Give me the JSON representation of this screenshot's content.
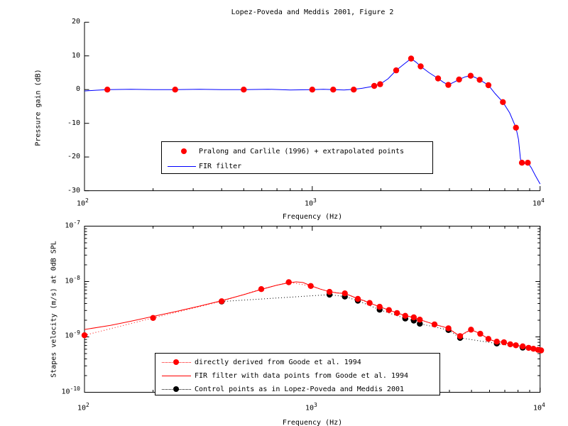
{
  "figure": {
    "background": "#ffffff",
    "axis_color": "#000000",
    "red": "#ff0000",
    "blue": "#0000ff",
    "black": "#000000"
  },
  "chart_data": [
    {
      "type": "line",
      "title": "Lopez-Poveda and Meddis 2001, Figure 2",
      "xlabel": "Frequency (Hz)",
      "ylabel": "Pressure gain (dB)",
      "xscale": "log",
      "yscale": "linear",
      "xlim": [
        100,
        10000
      ],
      "ylim": [
        -30,
        20
      ],
      "grid": false,
      "legend_position": "inside-lower-center",
      "xticks": [
        {
          "v": 100,
          "base": "10",
          "exp": "2"
        },
        {
          "v": 1000,
          "base": "10",
          "exp": "3"
        },
        {
          "v": 10000,
          "base": "10",
          "exp": "4"
        }
      ],
      "xminor": [
        200,
        300,
        400,
        500,
        600,
        700,
        800,
        900,
        2000,
        3000,
        4000,
        5000,
        6000,
        7000,
        8000,
        9000
      ],
      "yticks": [
        {
          "v": 20,
          "label": "20"
        },
        {
          "v": 10,
          "label": "10"
        },
        {
          "v": 0,
          "label": "0"
        },
        {
          "v": -10,
          "label": "-10"
        },
        {
          "v": -20,
          "label": "-20"
        },
        {
          "v": -30,
          "label": "-30"
        }
      ],
      "series": [
        {
          "name": "Pralong and Carlile (1996) + extrapolated points",
          "style": "markers",
          "color": "#ff0000",
          "points": [
            [
              126,
              0
            ],
            [
              250,
              0
            ],
            [
              500,
              0
            ],
            [
              1000,
              0
            ],
            [
              1235,
              0
            ],
            [
              1520,
              0
            ],
            [
              1870,
              1.1
            ],
            [
              1985,
              1.6
            ],
            [
              2335,
              5.7
            ],
            [
              2715,
              9.2
            ],
            [
              2990,
              6.9
            ],
            [
              3565,
              3.3
            ],
            [
              3955,
              1.4
            ],
            [
              4410,
              3.0
            ],
            [
              4955,
              4.1
            ],
            [
              5430,
              2.9
            ],
            [
              5930,
              1.3
            ],
            [
              6865,
              -3.7
            ],
            [
              7835,
              -11.3
            ],
            [
              8320,
              -21.7
            ],
            [
              8830,
              -21.7
            ]
          ]
        },
        {
          "name": "FIR filter",
          "style": "line",
          "color": "#0000ff",
          "points": [
            [
              100,
              -0.4
            ],
            [
              112,
              -0.2
            ],
            [
              126,
              0
            ],
            [
              160,
              0.1
            ],
            [
              200,
              0
            ],
            [
              250,
              0
            ],
            [
              320,
              0.1
            ],
            [
              400,
              0
            ],
            [
              500,
              0
            ],
            [
              640,
              0.1
            ],
            [
              800,
              -0.1
            ],
            [
              1000,
              0
            ],
            [
              1120,
              0.1
            ],
            [
              1235,
              0
            ],
            [
              1380,
              -0.1
            ],
            [
              1520,
              0.1
            ],
            [
              1660,
              0.4
            ],
            [
              1790,
              0.8
            ],
            [
              1870,
              1.1
            ],
            [
              1985,
              1.6
            ],
            [
              2150,
              3.2
            ],
            [
              2335,
              5.7
            ],
            [
              2520,
              7.5
            ],
            [
              2715,
              9.2
            ],
            [
              2860,
              8.1
            ],
            [
              2990,
              6.9
            ],
            [
              3260,
              5.0
            ],
            [
              3565,
              3.3
            ],
            [
              3760,
              2.2
            ],
            [
              3955,
              1.4
            ],
            [
              4180,
              2.2
            ],
            [
              4410,
              3.0
            ],
            [
              4690,
              3.8
            ],
            [
              4955,
              4.1
            ],
            [
              5190,
              3.6
            ],
            [
              5430,
              2.9
            ],
            [
              5680,
              2.1
            ],
            [
              5930,
              1.3
            ],
            [
              6350,
              -1.2
            ],
            [
              6865,
              -3.7
            ],
            [
              7350,
              -6.9
            ],
            [
              7835,
              -11.3
            ],
            [
              8040,
              -14.8
            ],
            [
              8200,
              -20.5
            ],
            [
              8320,
              -21.7
            ],
            [
              8570,
              -21.9
            ],
            [
              8830,
              -21.7
            ],
            [
              9150,
              -23.2
            ],
            [
              9550,
              -25.6
            ],
            [
              10000,
              -28.0
            ]
          ]
        }
      ]
    },
    {
      "type": "line",
      "title": "",
      "xlabel": "Frequency (Hz)",
      "ylabel": "Stapes velocity (m/s) at 0dB SPL",
      "xscale": "log",
      "yscale": "log",
      "xlim": [
        100,
        10000
      ],
      "ylim": [
        1e-10,
        1e-07
      ],
      "grid": false,
      "legend_position": "inside-lower-center",
      "xticks": [
        {
          "v": 100,
          "base": "10",
          "exp": "2"
        },
        {
          "v": 1000,
          "base": "10",
          "exp": "3"
        },
        {
          "v": 10000,
          "base": "10",
          "exp": "4"
        }
      ],
      "xminor": [
        200,
        300,
        400,
        500,
        600,
        700,
        800,
        900,
        2000,
        3000,
        4000,
        5000,
        6000,
        7000,
        8000,
        9000
      ],
      "yticks": [
        {
          "v": 1e-07,
          "base": "10",
          "exp": "-7"
        },
        {
          "v": 1e-08,
          "base": "10",
          "exp": "-8"
        },
        {
          "v": 1e-09,
          "base": "10",
          "exp": "-9"
        },
        {
          "v": 1e-10,
          "base": "10",
          "exp": "-10"
        }
      ],
      "yminor": [
        9e-08,
        8e-08,
        7e-08,
        6e-08,
        5e-08,
        4e-08,
        3e-08,
        2e-08,
        9e-09,
        8e-09,
        7e-09,
        6e-09,
        5e-09,
        4e-09,
        3e-09,
        2e-09,
        9e-10,
        8e-10,
        7e-10,
        6e-10,
        5e-10,
        4e-10,
        3e-10,
        2e-10
      ],
      "series": [
        {
          "name": "directly derived from Goode et al. 1994",
          "style": "dotted-markers",
          "color": "#ff0000",
          "points": [
            [
              100,
              1.07e-09
            ],
            [
              200,
              2.2e-09
            ],
            [
              400,
              4.4e-09
            ],
            [
              597,
              7.3e-09
            ],
            [
              788,
              9.7e-09
            ],
            [
              985,
              8.3e-09
            ],
            [
              1190,
              6.5e-09
            ],
            [
              1390,
              6.1e-09
            ],
            [
              1585,
              4.85e-09
            ],
            [
              1785,
              4.1e-09
            ],
            [
              1975,
              3.5e-09
            ],
            [
              2170,
              3.05e-09
            ],
            [
              2355,
              2.7e-09
            ],
            [
              2560,
              2.4e-09
            ],
            [
              2790,
              2.25e-09
            ],
            [
              2965,
              2.05e-09
            ],
            [
              3440,
              1.68e-09
            ],
            [
              3960,
              1.43e-09
            ],
            [
              4455,
              1.03e-09
            ],
            [
              4975,
              1.35e-09
            ],
            [
              5460,
              1.14e-09
            ],
            [
              5930,
              9.2e-10
            ],
            [
              6455,
              8.2e-10
            ],
            [
              6940,
              8e-10
            ],
            [
              7400,
              7.35e-10
            ],
            [
              7830,
              7.05e-10
            ],
            [
              8390,
              6.75e-10
            ],
            [
              8900,
              6.35e-10
            ],
            [
              9350,
              6.1e-10
            ],
            [
              9800,
              5.85e-10
            ],
            [
              10100,
              5.7e-10
            ]
          ]
        },
        {
          "name": "FIR filter with data points from Goode et al. 1994",
          "style": "line",
          "color": "#ff0000",
          "points": [
            [
              100,
              1.36e-09
            ],
            [
              130,
              1.62e-09
            ],
            [
              160,
              1.92e-09
            ],
            [
              200,
              2.35e-09
            ],
            [
              250,
              2.85e-09
            ],
            [
              320,
              3.6e-09
            ],
            [
              400,
              4.5e-09
            ],
            [
              500,
              5.8e-09
            ],
            [
              597,
              7.2e-09
            ],
            [
              700,
              8.6e-09
            ],
            [
              788,
              9.5e-09
            ],
            [
              850,
              9.85e-09
            ],
            [
              910,
              9.6e-09
            ],
            [
              985,
              8.4e-09
            ],
            [
              1085,
              7.3e-09
            ],
            [
              1190,
              6.55e-09
            ],
            [
              1290,
              6.2e-09
            ],
            [
              1390,
              6.1e-09
            ],
            [
              1490,
              5.45e-09
            ],
            [
              1585,
              4.9e-09
            ],
            [
              1690,
              4.5e-09
            ],
            [
              1785,
              4.1e-09
            ],
            [
              1975,
              3.5e-09
            ],
            [
              2170,
              3.05e-09
            ],
            [
              2355,
              2.72e-09
            ],
            [
              2560,
              2.42e-09
            ],
            [
              2790,
              2.25e-09
            ],
            [
              2965,
              2.05e-09
            ],
            [
              3200,
              1.85e-09
            ],
            [
              3440,
              1.68e-09
            ],
            [
              3700,
              1.55e-09
            ],
            [
              3960,
              1.43e-09
            ],
            [
              4200,
              1.2e-09
            ],
            [
              4455,
              1.04e-09
            ],
            [
              4700,
              1.2e-09
            ],
            [
              4975,
              1.34e-09
            ],
            [
              5200,
              1.25e-09
            ],
            [
              5460,
              1.14e-09
            ],
            [
              5700,
              1.02e-09
            ],
            [
              5930,
              9.2e-10
            ],
            [
              6190,
              8.6e-10
            ],
            [
              6455,
              8.2e-10
            ],
            [
              6940,
              8e-10
            ],
            [
              7400,
              7.35e-10
            ],
            [
              7830,
              7.05e-10
            ],
            [
              8390,
              6.75e-10
            ],
            [
              8900,
              6.35e-10
            ],
            [
              9350,
              6.1e-10
            ],
            [
              9800,
              5.85e-10
            ],
            [
              10100,
              5.7e-10
            ]
          ]
        },
        {
          "name": "Control points as in Lopez-Poveda and Meddis 2001",
          "style": "dotted-markers",
          "color": "#000000",
          "points": [
            [
              400,
              4.35e-09
            ],
            [
              1190,
              5.8e-09
            ],
            [
              1390,
              5.35e-09
            ],
            [
              1585,
              4.5e-09
            ],
            [
              1975,
              3.1e-09
            ],
            [
              2560,
              2.15e-09
            ],
            [
              2790,
              1.97e-09
            ],
            [
              2965,
              1.73e-09
            ],
            [
              3960,
              1.33e-09
            ],
            [
              4455,
              9.6e-10
            ],
            [
              6455,
              7.6e-10
            ],
            [
              8390,
              6.4e-10
            ]
          ]
        }
      ]
    }
  ]
}
